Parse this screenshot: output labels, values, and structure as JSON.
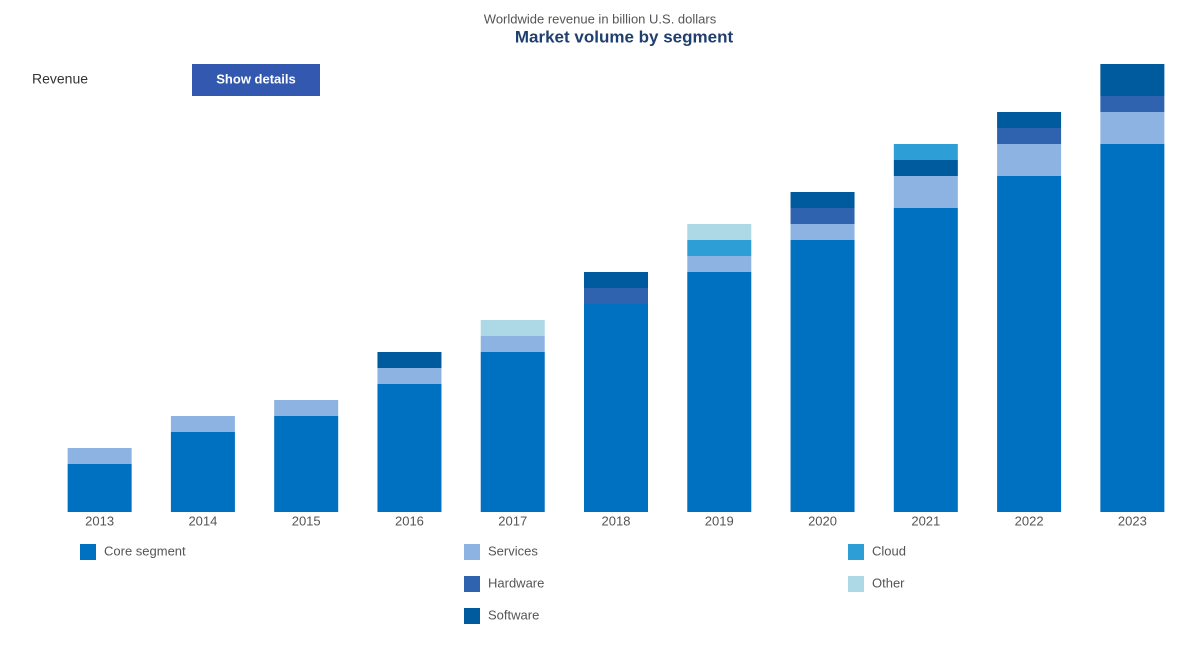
{
  "chart_data": {
    "type": "stacked-bar",
    "title": "Market volume by segment",
    "subtitle": "Worldwide revenue in billion U.S. dollars",
    "unit_label": "Revenue",
    "button": "Show details",
    "categories": [
      "2013",
      "2014",
      "2015",
      "2016",
      "2017",
      "2018",
      "2019",
      "2020",
      "2021",
      "2022",
      "2023"
    ],
    "ylim": [
      0,
      450
    ],
    "series": [
      {
        "name": "Core segment",
        "color": "#0070c0",
        "values": [
          48,
          80,
          96,
          128,
          160,
          208,
          240,
          272,
          304,
          336,
          368
        ]
      },
      {
        "name": "Services",
        "color": "#8db3e2",
        "values": [
          16,
          16,
          16,
          16,
          16,
          0,
          16,
          16,
          32,
          32,
          32
        ]
      },
      {
        "name": "Hardware",
        "color": "#2f63b0",
        "values": [
          0,
          0,
          0,
          0,
          0,
          16,
          0,
          16,
          0,
          16,
          16
        ]
      },
      {
        "name": "Software",
        "color": "#005a9e",
        "values": [
          0,
          0,
          0,
          16,
          0,
          16,
          0,
          16,
          16,
          16,
          32
        ]
      },
      {
        "name": "Cloud",
        "color": "#2e9fd6",
        "values": [
          0,
          0,
          0,
          0,
          0,
          0,
          16,
          0,
          16,
          0,
          0
        ]
      },
      {
        "name": "Other",
        "color": "#add8e6",
        "values": [
          0,
          0,
          0,
          0,
          16,
          0,
          16,
          0,
          0,
          0,
          0
        ]
      }
    ]
  }
}
